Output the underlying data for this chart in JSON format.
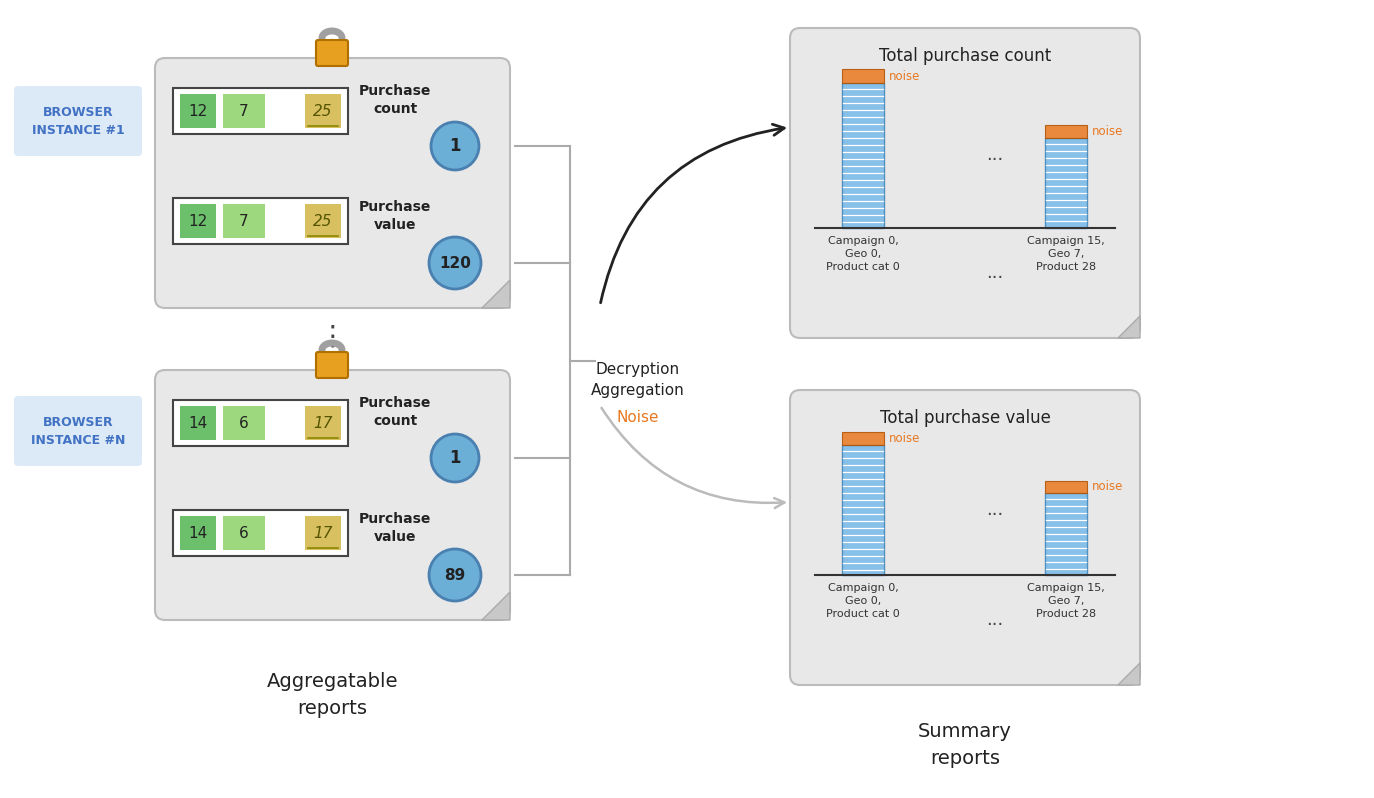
{
  "bg_color": "#ffffff",
  "browser_box_color": "#dce9f7",
  "browser_text_color": "#4272c4",
  "report_box_color": "#e8e8e8",
  "row_box_edge": "#333333",
  "green_box1": "#6cc06c",
  "green_box2": "#9ed87e",
  "yellow_box": "#d8c060",
  "circle_color": "#6baed6",
  "circle_edge": "#4a80b0",
  "lock_body": "#e8a020",
  "lock_shackle": "#a0a0a0",
  "bar_blue": "#87c0e8",
  "bar_noise": "#e87820",
  "summary_box_color": "#e8e8e8",
  "browser1_label": "BROWSER\nINSTANCE #1",
  "browser2_label": "BROWSER\nINSTANCE #N",
  "agg_reports_label": "Aggregatable\nreports",
  "summary_reports_label": "Summary\nreports",
  "decryption_label": "Decryption\nAggregation",
  "noise_label": "Noise",
  "purchase_count_label": "Purchase\ncount",
  "purchase_value_label": "Purchase\nvalue",
  "total_purchase_count_title": "Total purchase count",
  "total_purchase_value_title": "Total purchase value",
  "bar1_xlabel": "Campaign 0,\nGeo 0,\nProduct cat 0",
  "bar2_xlabel": "Campaign 15,\nGeo 7,\nProduct 28",
  "dots": "...",
  "row1_vals": [
    "12",
    "7",
    "25"
  ],
  "row2_vals": [
    "12",
    "7",
    "25"
  ],
  "row3_vals": [
    "14",
    "6",
    "17"
  ],
  "row4_vals": [
    "14",
    "6",
    "17"
  ],
  "circle1_val": "1",
  "circle2_val": "120",
  "circle3_val": "1",
  "circle4_val": "89"
}
